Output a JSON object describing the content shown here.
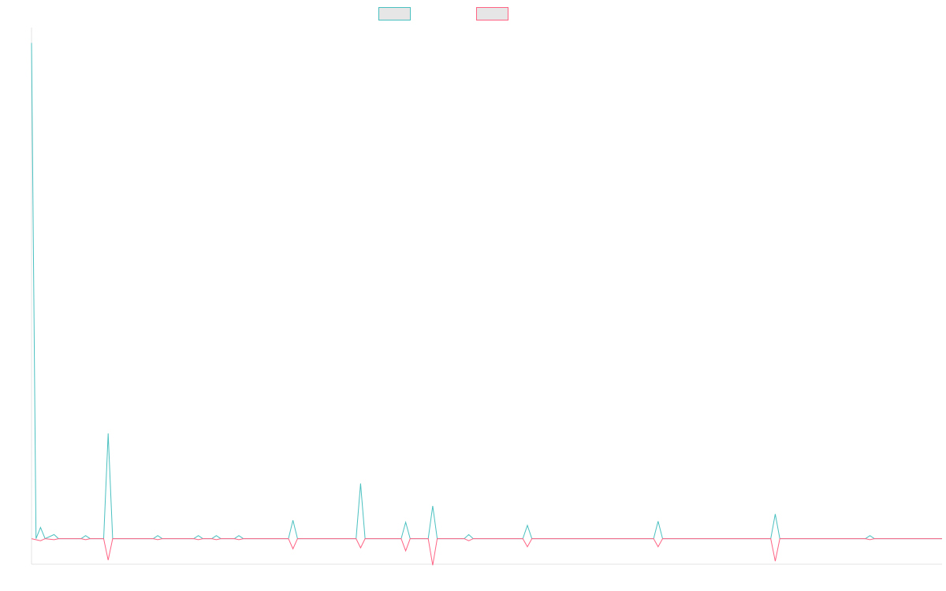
{
  "chart_data": {
    "type": "line",
    "ylim": [
      -2.5,
      50
    ],
    "xlim": [
      0,
      101
    ],
    "grid": false,
    "legend_position": "top-center",
    "series": [
      {
        "color": "#4bc0c0",
        "values": [
          [
            0,
            48.5
          ],
          [
            0.5,
            0
          ],
          [
            1,
            1.1
          ],
          [
            1.5,
            0
          ],
          [
            2.5,
            0.4
          ],
          [
            3,
            0
          ],
          [
            5.5,
            0
          ],
          [
            6,
            0.3
          ],
          [
            6.5,
            0
          ],
          [
            8,
            0
          ],
          [
            8.5,
            10.3
          ],
          [
            9,
            0
          ],
          [
            13.5,
            0
          ],
          [
            14,
            0.3
          ],
          [
            14.5,
            0
          ],
          [
            18,
            0
          ],
          [
            18.5,
            0.3
          ],
          [
            19,
            0
          ],
          [
            20,
            0
          ],
          [
            20.5,
            0.3
          ],
          [
            21,
            0
          ],
          [
            22.5,
            0
          ],
          [
            23,
            0.3
          ],
          [
            23.5,
            0
          ],
          [
            28.5,
            0
          ],
          [
            29,
            1.8
          ],
          [
            29.5,
            0
          ],
          [
            36,
            0
          ],
          [
            36.5,
            5.4
          ],
          [
            37,
            0
          ],
          [
            41,
            0
          ],
          [
            41.5,
            1.6
          ],
          [
            42,
            0
          ],
          [
            44,
            0
          ],
          [
            44.5,
            3.2
          ],
          [
            45,
            0
          ],
          [
            48,
            0
          ],
          [
            48.5,
            0.4
          ],
          [
            49,
            0
          ],
          [
            54.5,
            0
          ],
          [
            55,
            1.3
          ],
          [
            55.5,
            0
          ],
          [
            69,
            0
          ],
          [
            69.5,
            1.7
          ],
          [
            70,
            0
          ],
          [
            82,
            0
          ],
          [
            82.5,
            2.4
          ],
          [
            83,
            0
          ],
          [
            92.5,
            0
          ],
          [
            93,
            0.3
          ],
          [
            93.5,
            0
          ],
          [
            101,
            0
          ]
        ]
      },
      {
        "color": "#ff6384",
        "values": [
          [
            0,
            0
          ],
          [
            1,
            -0.2
          ],
          [
            1.5,
            0
          ],
          [
            2.5,
            -0.1
          ],
          [
            3,
            0
          ],
          [
            5.5,
            0
          ],
          [
            6,
            -0.1
          ],
          [
            6.5,
            0
          ],
          [
            8,
            0
          ],
          [
            8.5,
            -2.1
          ],
          [
            9,
            0
          ],
          [
            13.5,
            0
          ],
          [
            14,
            -0.1
          ],
          [
            14.5,
            0
          ],
          [
            18,
            0
          ],
          [
            18.5,
            -0.1
          ],
          [
            19,
            0
          ],
          [
            20,
            0
          ],
          [
            20.5,
            -0.1
          ],
          [
            21,
            0
          ],
          [
            22.5,
            0
          ],
          [
            23,
            -0.1
          ],
          [
            23.5,
            0
          ],
          [
            28.5,
            0
          ],
          [
            29,
            -1.0
          ],
          [
            29.5,
            0
          ],
          [
            36,
            0
          ],
          [
            36.5,
            -0.9
          ],
          [
            37,
            0
          ],
          [
            41,
            0
          ],
          [
            41.5,
            -1.2
          ],
          [
            42,
            0
          ],
          [
            44,
            0
          ],
          [
            44.5,
            -2.6
          ],
          [
            45,
            0
          ],
          [
            48,
            0
          ],
          [
            48.5,
            -0.2
          ],
          [
            49,
            0
          ],
          [
            54.5,
            0
          ],
          [
            55,
            -0.8
          ],
          [
            55.5,
            0
          ],
          [
            69,
            0
          ],
          [
            69.5,
            -0.8
          ],
          [
            70,
            0
          ],
          [
            82,
            0
          ],
          [
            82.5,
            -2.2
          ],
          [
            83,
            0
          ],
          [
            92.5,
            0
          ],
          [
            93,
            -0.1
          ],
          [
            93.5,
            0
          ],
          [
            101,
            0
          ]
        ]
      }
    ]
  }
}
